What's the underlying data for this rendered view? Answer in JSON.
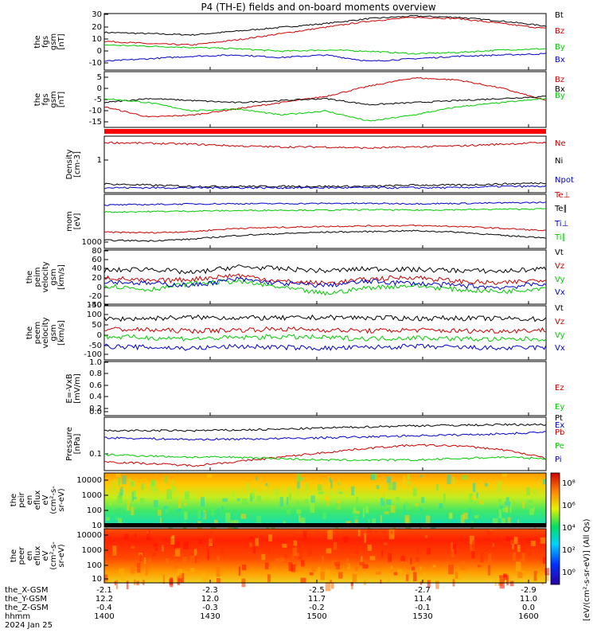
{
  "title": "P4 (TH-E) fields and on-board moments overview",
  "footer": {
    "rows": [
      {
        "label": "the_X-GSM",
        "values": [
          "-2.1",
          "-2.3",
          "-2.5",
          "-2.7",
          "-2.9"
        ]
      },
      {
        "label": "the_Y-GSM",
        "values": [
          "12.2",
          "12.0",
          "11.7",
          "11.4",
          "11.0"
        ]
      },
      {
        "label": "the_Z-GSM",
        "values": [
          "-0.4",
          "-0.3",
          "-0.2",
          "-0.1",
          "0.0"
        ]
      },
      {
        "label": "hhmm",
        "values": [
          "1400",
          "1430",
          "1500",
          "1530",
          "1600"
        ]
      }
    ],
    "date": "2024 Jan 25"
  },
  "colorbar": {
    "label": "[eV/(cm²-s-sr-eV)] (All Qs)",
    "ticks": [
      "10⁸",
      "10⁶",
      "10⁴",
      "10²",
      "10⁰"
    ]
  },
  "chart_data": [
    {
      "id": "fgs-gsm",
      "type": "line",
      "ylabel_lines": [
        "the",
        "fgs",
        "gsm",
        "[nT]"
      ],
      "ylim": [
        -15,
        30
      ],
      "yticks": [
        "30",
        "20",
        "10",
        "0",
        "-10"
      ],
      "x": [
        0,
        0.1,
        0.2,
        0.3,
        0.4,
        0.5,
        0.6,
        0.7,
        0.8,
        0.9,
        1.0
      ],
      "series": [
        {
          "name": "Bt",
          "color": "#000000",
          "values": [
            15,
            14,
            13,
            16,
            19,
            22,
            26,
            28,
            27,
            24,
            20
          ]
        },
        {
          "name": "Bz",
          "color": "#cc0000",
          "values": [
            8,
            6,
            5,
            9,
            14,
            19,
            24,
            27,
            26,
            22,
            18
          ]
        },
        {
          "name": "By",
          "color": "#00cc00",
          "values": [
            5,
            4,
            3,
            2,
            0,
            1,
            0,
            -2,
            -1,
            1,
            2
          ]
        },
        {
          "name": "Bx",
          "color": "#0000cc",
          "values": [
            -8,
            -6,
            -4,
            -3,
            -5,
            -3,
            -8,
            -6,
            -4,
            -3,
            -2
          ]
        }
      ]
    },
    {
      "id": "fgs-gsm-2",
      "type": "line",
      "ylabel_lines": [
        "the",
        "fgs",
        "gsm",
        "[nT]"
      ],
      "ylim": [
        -18,
        9
      ],
      "yticks": [
        "5",
        "0",
        "-5",
        "-10",
        "-15"
      ],
      "x": [
        0,
        0.1,
        0.2,
        0.3,
        0.4,
        0.5,
        0.6,
        0.7,
        0.8,
        0.9,
        1.0
      ],
      "series": [
        {
          "name": "Bz",
          "color": "#cc0000",
          "values": [
            -8,
            -13,
            -12,
            -9,
            -6,
            -3,
            2,
            6,
            5,
            1,
            -5
          ]
        },
        {
          "name": "Bx",
          "color": "#000000",
          "values": [
            -6,
            -4,
            -5,
            -6,
            -5,
            -4,
            -7,
            -6,
            -5,
            -4,
            -3
          ]
        },
        {
          "name": "By",
          "color": "#00cc00",
          "values": [
            -4,
            -6,
            -10,
            -9,
            -12,
            -10,
            -15,
            -12,
            -8,
            -6,
            -4
          ]
        }
      ]
    },
    {
      "id": "density",
      "type": "line",
      "ylabel_lines": [
        "Density",
        "[cm-3]"
      ],
      "ylim": [
        0.08,
        3
      ],
      "yscale": "log",
      "yticks": [
        "1"
      ],
      "x": [
        0,
        0.1,
        0.2,
        0.3,
        0.4,
        0.5,
        0.6,
        0.7,
        0.8,
        0.9,
        1.0
      ],
      "series": [
        {
          "name": "Ne",
          "color": "#cc0000",
          "values": [
            2.0,
            1.9,
            1.8,
            1.6,
            1.5,
            1.5,
            1.4,
            1.5,
            1.6,
            1.8,
            2.0
          ]
        },
        {
          "name": "Ni",
          "color": "#000000",
          "values": [
            0.14,
            0.13,
            0.12,
            0.12,
            0.12,
            0.12,
            0.12,
            0.13,
            0.13,
            0.14,
            0.15
          ]
        },
        {
          "name": "Npot",
          "color": "#0000cc",
          "values": [
            0.11,
            0.11,
            0.11,
            0.11,
            0.11,
            0.11,
            0.11,
            0.11,
            0.11,
            0.12,
            0.12
          ]
        }
      ]
    },
    {
      "id": "temperature",
      "type": "line",
      "ylabel_lines": [
        "mom",
        "[eV]"
      ],
      "ylim": [
        1000,
        100000
      ],
      "yscale": "log",
      "yticks": [
        "1000"
      ],
      "x": [
        0,
        0.1,
        0.2,
        0.3,
        0.4,
        0.5,
        0.6,
        0.7,
        0.8,
        0.9,
        1.0
      ],
      "series": [
        {
          "name": "Te⊥",
          "color": "#cc0000",
          "values": [
            4000,
            3800,
            4200,
            5500,
            6000,
            6500,
            6800,
            7000,
            6500,
            5500,
            4500
          ]
        },
        {
          "name": "Te∥",
          "color": "#000000",
          "values": [
            2000,
            1900,
            2200,
            3000,
            3500,
            4000,
            4200,
            4500,
            4000,
            3000,
            2500
          ]
        },
        {
          "name": "Ti⊥",
          "color": "#0000cc",
          "values": [
            40000,
            42000,
            44000,
            45000,
            45000,
            46000,
            46000,
            45000,
            46000,
            48000,
            50000
          ]
        },
        {
          "name": "Ti∥",
          "color": "#00cc00",
          "values": [
            22000,
            23000,
            24000,
            25000,
            26000,
            26000,
            27000,
            26000,
            27000,
            28000,
            29000
          ]
        }
      ]
    },
    {
      "id": "peim-velocity",
      "type": "line",
      "ylabel_lines": [
        "the",
        "peim",
        "velocity",
        "gsm",
        "[km/s]"
      ],
      "ylim": [
        -45,
        85
      ],
      "yticks": [
        "80",
        "60",
        "40",
        "20",
        "0",
        "-20",
        "-40"
      ],
      "x": [
        0,
        0.1,
        0.2,
        0.3,
        0.4,
        0.5,
        0.6,
        0.7,
        0.8,
        0.9,
        1.0
      ],
      "series": [
        {
          "name": "Vt",
          "color": "#000000",
          "values": [
            35,
            40,
            30,
            45,
            40,
            35,
            40,
            38,
            36,
            34,
            40
          ]
        },
        {
          "name": "Vz",
          "color": "#cc0000",
          "values": [
            20,
            10,
            15,
            25,
            10,
            5,
            15,
            20,
            10,
            5,
            15
          ]
        },
        {
          "name": "Vy",
          "color": "#00cc00",
          "values": [
            0,
            -10,
            5,
            10,
            -5,
            -20,
            -5,
            0,
            -10,
            -15,
            -5
          ]
        },
        {
          "name": "Vx",
          "color": "#0000cc",
          "values": [
            10,
            5,
            0,
            15,
            5,
            0,
            10,
            5,
            0,
            -5,
            5
          ]
        }
      ]
    },
    {
      "id": "peem-velocity",
      "type": "line",
      "ylabel_lines": [
        "the",
        "peem",
        "velocity",
        "gsm",
        "[km/s]"
      ],
      "ylim": [
        -130,
        150
      ],
      "yticks": [
        "150",
        "100",
        "50",
        "0",
        "-50",
        "-100"
      ],
      "x": [
        0,
        0.1,
        0.2,
        0.3,
        0.4,
        0.5,
        0.6,
        0.7,
        0.8,
        0.9,
        1.0
      ],
      "series": [
        {
          "name": "Vt",
          "color": "#000000",
          "values": [
            80,
            85,
            90,
            88,
            86,
            90,
            88,
            85,
            86,
            84,
            80
          ]
        },
        {
          "name": "Vz",
          "color": "#cc0000",
          "values": [
            30,
            25,
            20,
            25,
            30,
            25,
            20,
            25,
            20,
            20,
            25
          ]
        },
        {
          "name": "Vy",
          "color": "#00cc00",
          "values": [
            -10,
            -15,
            -20,
            -15,
            -10,
            -15,
            -20,
            -15,
            -20,
            -25,
            -20
          ]
        },
        {
          "name": "Vx",
          "color": "#0000cc",
          "values": [
            -60,
            -65,
            -70,
            -60,
            -65,
            -70,
            -65,
            -60,
            -65,
            -70,
            -65
          ]
        }
      ]
    },
    {
      "id": "efield",
      "type": "line",
      "ylabel_lines": [
        "E=-VxB",
        "[mV/m]"
      ],
      "ylim": [
        -0.05,
        1.0
      ],
      "yticks": [
        "1.0",
        "0.8",
        "0.6",
        "0.4",
        "0.2",
        "0.0"
      ],
      "x": [],
      "series": [
        {
          "name": "Ez",
          "color": "#cc0000",
          "values": []
        },
        {
          "name": "Ey",
          "color": "#00cc00",
          "values": []
        },
        {
          "name": "Ex",
          "color": "#0000cc",
          "values": []
        }
      ]
    },
    {
      "id": "pressure",
      "type": "line",
      "ylabel_lines": [
        "Pressure",
        "[nPa]"
      ],
      "ylim": [
        0.06,
        1.3
      ],
      "yscale": "log",
      "yticks": [
        "0.1"
      ],
      "x": [
        0,
        0.1,
        0.2,
        0.3,
        0.4,
        0.5,
        0.6,
        0.7,
        0.8,
        0.9,
        1.0
      ],
      "series": [
        {
          "name": "Pt",
          "color": "#000000",
          "values": [
            0.6,
            0.6,
            0.6,
            0.62,
            0.65,
            0.7,
            0.75,
            0.8,
            0.82,
            0.85,
            0.85
          ]
        },
        {
          "name": "Pb",
          "color": "#cc0000",
          "values": [
            0.1,
            0.09,
            0.08,
            0.1,
            0.13,
            0.17,
            0.22,
            0.26,
            0.25,
            0.2,
            0.12
          ]
        },
        {
          "name": "Pe",
          "color": "#00cc00",
          "values": [
            0.15,
            0.14,
            0.13,
            0.13,
            0.12,
            0.11,
            0.11,
            0.11,
            0.12,
            0.13,
            0.12
          ]
        },
        {
          "name": "Pi",
          "color": "#0000cc",
          "values": [
            0.4,
            0.38,
            0.36,
            0.37,
            0.38,
            0.4,
            0.42,
            0.45,
            0.47,
            0.5,
            0.55
          ]
        }
      ]
    },
    {
      "id": "peir-eflux",
      "type": "heatmap",
      "ylabel_lines": [
        "the",
        "peir",
        "en",
        "eflux",
        "eV",
        "(cm²-s-",
        "sr-eV)"
      ],
      "ylim": [
        7,
        15000
      ],
      "yscale": "log",
      "yticks": [
        "10000",
        "1000",
        "100",
        "10"
      ]
    },
    {
      "id": "peer-eflux",
      "type": "heatmap",
      "ylabel_lines": [
        "the",
        "peer",
        "en",
        "eflux",
        "eV",
        "(cm²-s-",
        "sr-eV)"
      ],
      "ylim": [
        7,
        15000
      ],
      "yscale": "log",
      "yticks": [
        "10000",
        "1000",
        "100",
        "10"
      ]
    }
  ]
}
